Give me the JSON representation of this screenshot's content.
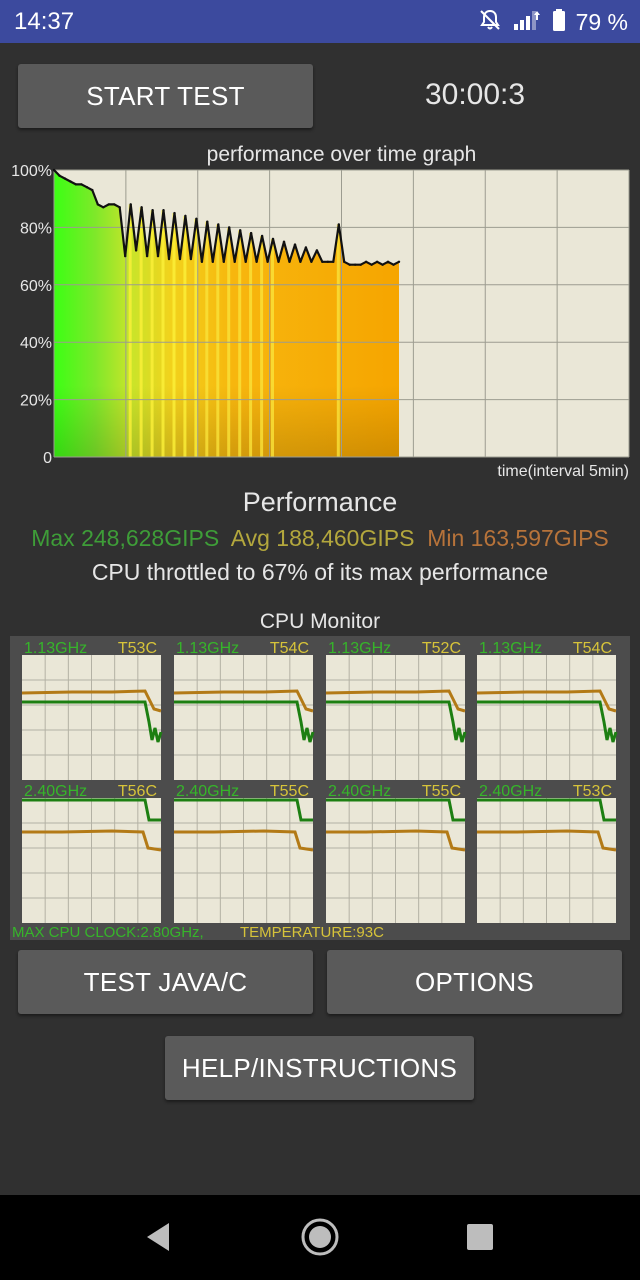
{
  "status_bar": {
    "time": "14:37",
    "battery_percent": "79 %"
  },
  "controls": {
    "start_test_label": "START TEST",
    "timer": "30:00:3"
  },
  "graph": {
    "title": "performance over time graph",
    "y_ticks": [
      "100%",
      "80%",
      "60%",
      "40%",
      "20%",
      "0"
    ],
    "x_label": "time(interval 5min)"
  },
  "chart_data": {
    "type": "area",
    "title": "performance over time graph",
    "xlabel": "time(interval 5min)",
    "ylabel": "",
    "ylim": [
      0,
      100
    ],
    "y_ticks": [
      0,
      20,
      40,
      60,
      80,
      100
    ],
    "x_intervals": 8,
    "x_fill_fraction": 0.6,
    "series": [
      {
        "values": [
          100,
          98,
          97,
          96,
          95,
          95,
          94,
          93,
          88,
          87,
          88,
          88,
          87,
          70,
          88,
          72,
          87,
          70,
          86,
          70,
          86,
          69,
          85,
          69,
          84,
          69,
          83,
          68,
          82,
          68,
          81,
          68,
          80,
          68,
          79,
          68,
          78,
          68,
          77,
          68,
          76,
          68,
          75,
          68,
          74,
          68,
          73,
          68,
          72,
          68,
          68,
          68,
          81,
          68,
          67,
          67,
          67,
          68,
          67,
          68,
          67,
          68,
          67,
          68
        ]
      }
    ]
  },
  "performance": {
    "heading": "Performance",
    "max": "Max 248,628GIPS",
    "avg": "Avg 188,460GIPS",
    "min": "Min 163,597GIPS",
    "throttle": "CPU throttled to 67% of its max performance"
  },
  "cpu_monitor": {
    "title": "CPU Monitor",
    "cores": [
      {
        "freq": "1.13GHz",
        "temp": "T53C"
      },
      {
        "freq": "1.13GHz",
        "temp": "T54C"
      },
      {
        "freq": "1.13GHz",
        "temp": "T52C"
      },
      {
        "freq": "1.13GHz",
        "temp": "T54C"
      },
      {
        "freq": "2.40GHz",
        "temp": "T56C"
      },
      {
        "freq": "2.40GHz",
        "temp": "T55C"
      },
      {
        "freq": "2.40GHz",
        "temp": "T55C"
      },
      {
        "freq": "2.40GHz",
        "temp": "T53C"
      }
    ],
    "max_clock": "MAX CPU CLOCK:2.80GHz,",
    "temperature": "TEMPERATURE:93C"
  },
  "buttons": {
    "test_java_c": "TEST JAVA/C",
    "options": "OPTIONS",
    "help": "HELP/INSTRUCTIONS"
  },
  "colors": {
    "status_bar": "#3c4a9e",
    "background": "#303030",
    "max_text": "#3e9d38",
    "avg_text": "#b3a73d",
    "min_text": "#b7733a",
    "freq_line": "#1d7f12",
    "temp_line": "#b37a16"
  },
  "icons": [
    "mute-bell-icon",
    "signal-icon",
    "battery-icon",
    "back-icon",
    "home-icon",
    "recents-icon"
  ]
}
